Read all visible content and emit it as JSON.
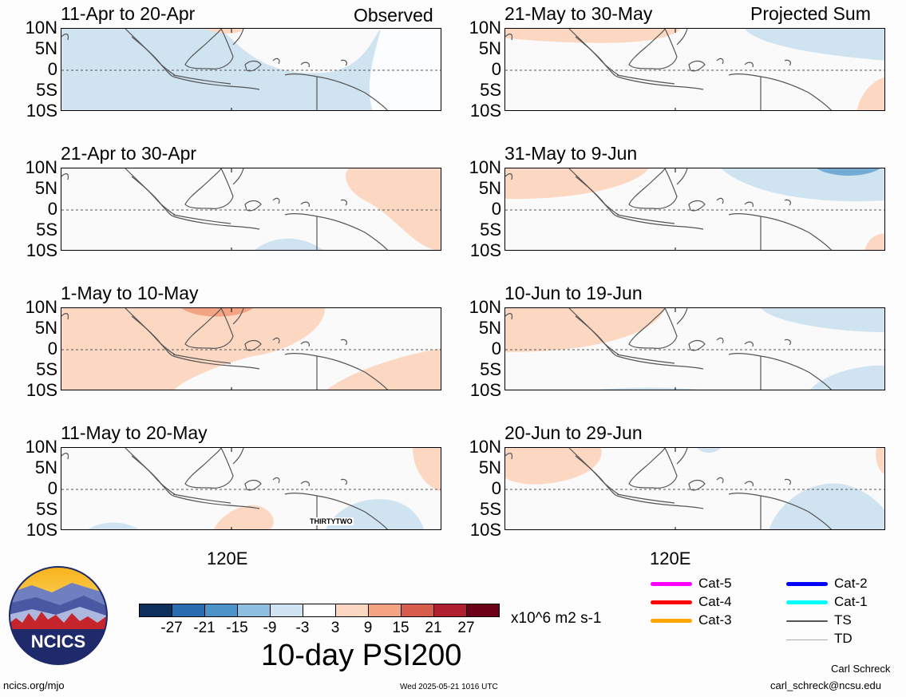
{
  "headers": {
    "left": "Observed",
    "right": "Projected Sum"
  },
  "lat_labels": [
    "10N",
    "5N",
    "0",
    "5S",
    "10S"
  ],
  "lon_label": "120E",
  "panels": {
    "left": [
      {
        "period": "11-Apr to 20-Apr"
      },
      {
        "period": "21-Apr to 30-Apr"
      },
      {
        "period": "1-May to 10-May"
      },
      {
        "period": "11-May to 20-May",
        "storm_label": "THIRTYTWO"
      }
    ],
    "right": [
      {
        "period": "21-May to 30-May"
      },
      {
        "period": "31-May to 9-Jun"
      },
      {
        "period": "10-Jun to 19-Jun"
      },
      {
        "period": "20-Jun to 29-Jun"
      }
    ]
  },
  "colorbar": {
    "title": "10-day PSI200",
    "units": "x10^6 m2 s-1",
    "tick_labels": [
      "-27",
      "-21",
      "-15",
      "-9",
      "-3",
      "3",
      "9",
      "15",
      "21",
      "27"
    ],
    "colors": [
      "#0d2f5e",
      "#2a6db0",
      "#4b93c8",
      "#8fbfe0",
      "#cfe3f1",
      "#ffffff",
      "#fcd7c2",
      "#f4a383",
      "#d85c4c",
      "#b01f2e",
      "#6b0018"
    ]
  },
  "legend": {
    "items": [
      {
        "label": "Cat-5",
        "color": "#ff00ff"
      },
      {
        "label": "Cat-4",
        "color": "#ff0000"
      },
      {
        "label": "Cat-3",
        "color": "#ffa500"
      },
      {
        "label": "Cat-2",
        "color": "#0000ff"
      },
      {
        "label": "Cat-1",
        "color": "#00ffff"
      },
      {
        "label": "TS",
        "color": "#555555"
      },
      {
        "label": "TD",
        "color": "#aaaaaa"
      }
    ]
  },
  "logo": {
    "text": "NCICS"
  },
  "footer": {
    "url": "ncics.org/mjo",
    "timestamp": "Wed 2025-05-21 1016 UTC",
    "author": "Carl Schreck",
    "email": "carl_schreck@ncsu.edu"
  }
}
